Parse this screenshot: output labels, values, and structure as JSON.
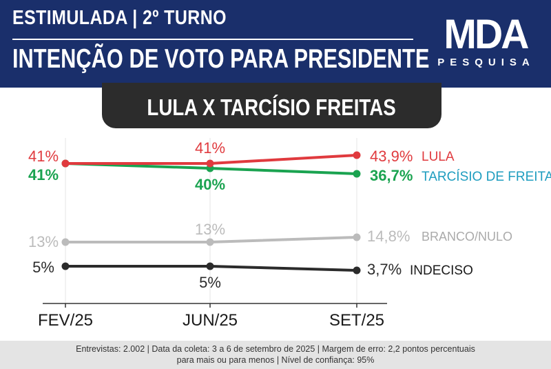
{
  "header": {
    "subtitle": "ESTIMULADA | 2º TURNO",
    "title": "INTENÇÃO DE VOTO PARA PRESIDENTE",
    "logo_main": "MDA",
    "logo_sub": "PESQUISA",
    "bg_color": "#1a2f6b"
  },
  "matchup": "LULA X TARCÍSIO FREITAS",
  "chart_data": {
    "type": "line",
    "categories": [
      "FEV/25",
      "JUN/25",
      "SET/25"
    ],
    "grid": false,
    "series": [
      {
        "name": "LULA",
        "values": [
          41,
          41,
          43.9
        ],
        "labels": [
          "41%",
          "41%",
          "43,9%"
        ],
        "color": "#e03a3e"
      },
      {
        "name": "TARCÍSIO DE FREITAS",
        "values": [
          41,
          40,
          36.7
        ],
        "labels": [
          "41%",
          "40%",
          "36,7%"
        ],
        "color": "#1aa350",
        "legend_color": "#1e9dbf"
      },
      {
        "name": "BRANCO/NULO",
        "values": [
          13,
          13,
          14.8
        ],
        "labels": [
          "13%",
          "13%",
          "14,8%"
        ],
        "color": "#bbbbbb"
      },
      {
        "name": "INDECISO",
        "values": [
          5,
          5,
          3.7
        ],
        "labels": [
          "5%",
          "5%",
          "3,7%"
        ],
        "color": "#2b2b2b"
      }
    ]
  },
  "footer": {
    "line1": "Entrevistas: 2.002 | Data da coleta: 3 a 6 de setembro de 2025 | Margem de erro: 2,2 pontos percentuais",
    "line2": "para mais ou para menos | Nível de confiança: 95%"
  }
}
